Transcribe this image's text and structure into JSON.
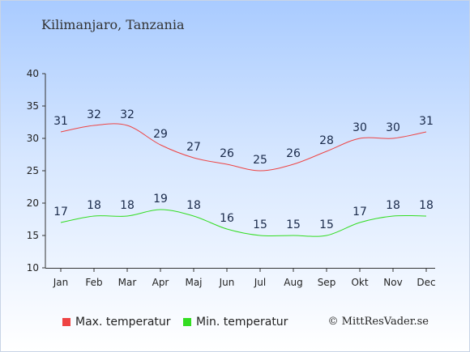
{
  "page": {
    "title": "Kilimanjaro, Tanzania",
    "copyright": "© MittResVader.se"
  },
  "legend": [
    {
      "label": "Max. temperatur",
      "color": "#ee4444"
    },
    {
      "label": "Min. temperatur",
      "color": "#33dd22"
    }
  ],
  "chart_data": {
    "type": "line",
    "categories": [
      "Jan",
      "Feb",
      "Mar",
      "Apr",
      "Maj",
      "Jun",
      "Jul",
      "Aug",
      "Sep",
      "Okt",
      "Nov",
      "Dec"
    ],
    "series": [
      {
        "name": "Max. temperatur",
        "color": "#ee4444",
        "values": [
          31,
          32,
          32,
          29,
          27,
          26,
          25,
          26,
          28,
          30,
          30,
          31
        ]
      },
      {
        "name": "Min. temperatur",
        "color": "#33dd22",
        "values": [
          17,
          18,
          18,
          19,
          18,
          16,
          15,
          15,
          15,
          17,
          18,
          18
        ]
      }
    ],
    "ylim": [
      10,
      40
    ],
    "yticks": [
      10,
      15,
      20,
      25,
      30,
      35,
      40
    ],
    "grid": false,
    "legend_position": "bottom"
  }
}
